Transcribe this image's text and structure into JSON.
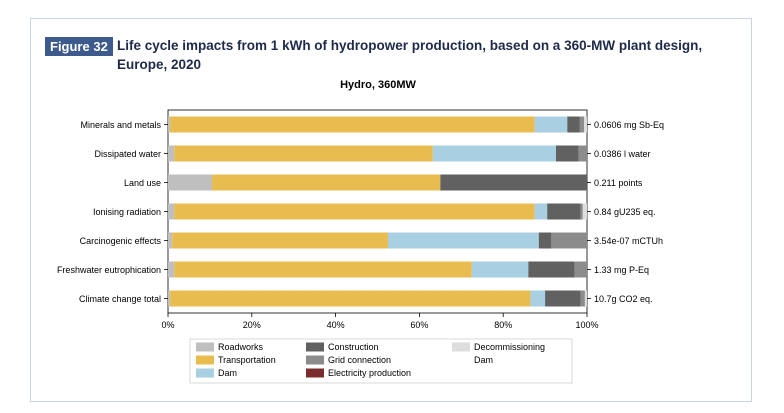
{
  "figure": {
    "tag": "Figure 32",
    "title": "Life cycle impacts from 1 kWh of hydropower production, based on a 360-MW plant design, Europe, 2020"
  },
  "chart_data": {
    "type": "bar",
    "orientation": "horizontal",
    "stacked": true,
    "title": "Hydro, 360MW",
    "xlabel": "",
    "ylabel": "",
    "xlim": [
      0,
      100
    ],
    "x_ticks": [
      "0%",
      "20%",
      "40%",
      "60%",
      "80%",
      "100%"
    ],
    "legend_position": "bottom",
    "categories": [
      "Minerals and metals",
      "Dissipated water",
      "Land use",
      "Ionising radiation",
      "Carcinogenic effects",
      "Freshwater eutrophication",
      "Climate change total"
    ],
    "totals": [
      "0.0606 mg Sb-Eq",
      "0.0386 l water",
      "0.211 points",
      "0.84 gU235 eq.",
      "3.54e-07 mCTUh",
      "1.33 mg P-Eq",
      "10.7g CO2 eq."
    ],
    "series": [
      {
        "name": "Roadworks",
        "color": "#bfbfbf",
        "values": [
          0.5,
          1.5,
          10.5,
          1.5,
          1.0,
          1.5,
          0.5
        ]
      },
      {
        "name": "Transportation",
        "color": "#e9bc4f",
        "values": [
          87.0,
          61.7,
          54.5,
          86.0,
          51.5,
          71.0,
          86.0
        ]
      },
      {
        "name": "Dam",
        "color": "#a9cfe3",
        "values": [
          7.8,
          29.4,
          0.0,
          3.0,
          36.0,
          13.5,
          3.5
        ]
      },
      {
        "name": "Construction",
        "color": "#616161",
        "values": [
          3.0,
          5.4,
          35.0,
          8.0,
          3.0,
          11.0,
          8.5
        ]
      },
      {
        "name": "Grid connection",
        "color": "#8c8c8c",
        "values": [
          1.0,
          2.0,
          0.0,
          0.5,
          8.5,
          3.0,
          1.0
        ]
      },
      {
        "name": "Electricity production",
        "color": "#7b2c2c",
        "values": [
          0.0,
          0.0,
          0.0,
          0.0,
          0.0,
          0.0,
          0.0
        ]
      },
      {
        "name": "Decommissioning Dam",
        "color": "#dddddd",
        "values": [
          0.7,
          0.0,
          0.0,
          1.0,
          0.0,
          0.0,
          0.5
        ]
      }
    ]
  }
}
